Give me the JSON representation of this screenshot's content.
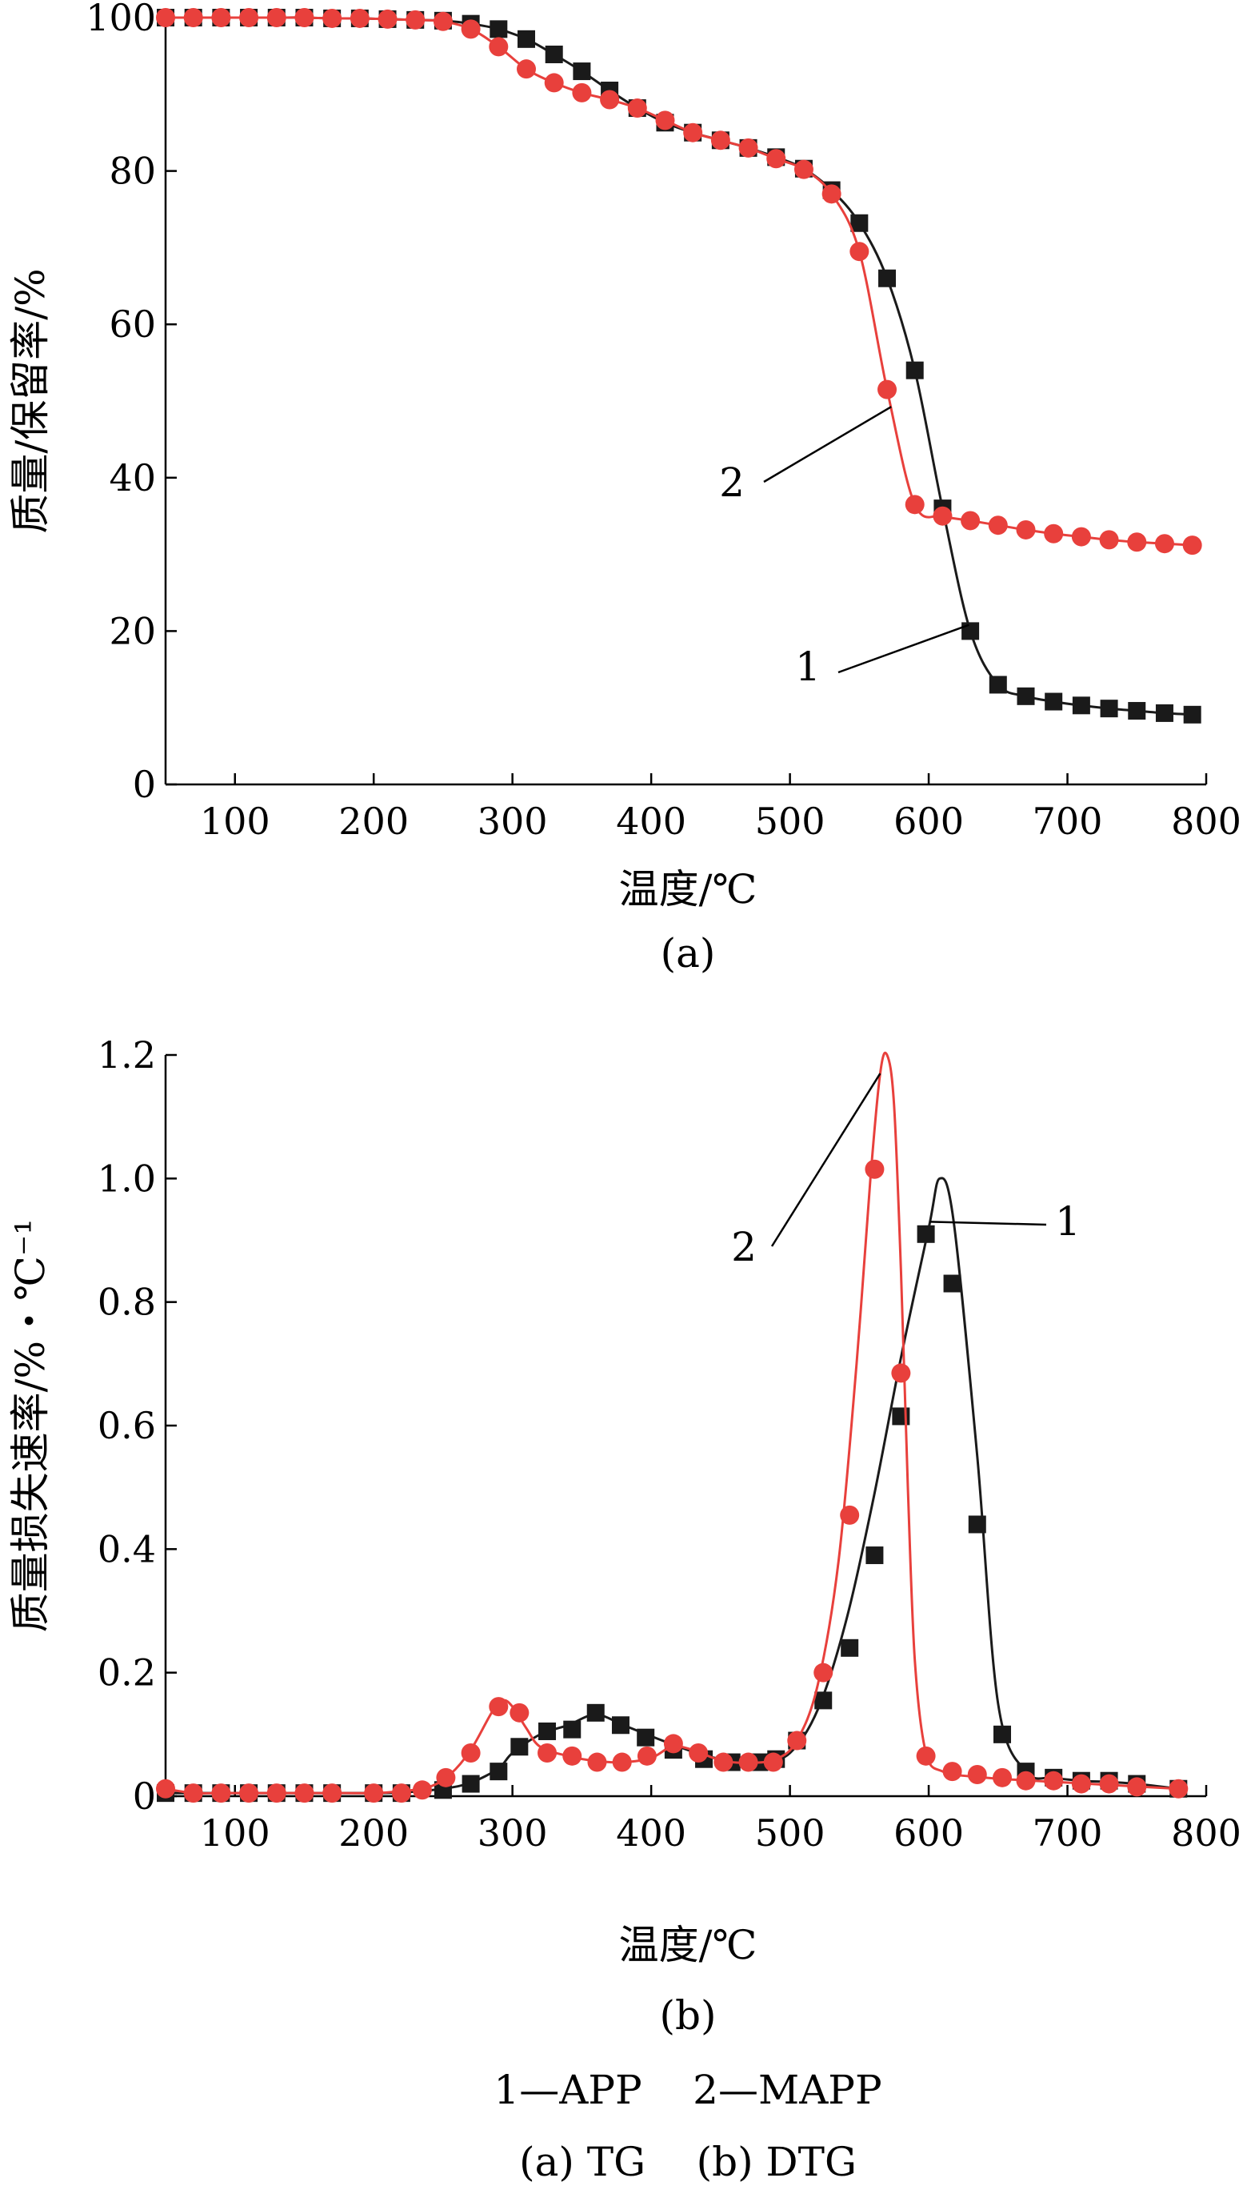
{
  "figure": {
    "legend_text": "1—APP    2—MAPP",
    "caption_text": "(a) TG    (b) DTG"
  },
  "series_labels": [
    "1",
    "2"
  ],
  "colors": {
    "series_1": "#1a1a1a",
    "series_2": "#e8403c",
    "axis": "#000000"
  },
  "chart_data": [
    {
      "type": "line",
      "panel_label": "(a)",
      "xlabel": "温度/℃",
      "ylabel": "质量/保留率/%",
      "xlim": [
        50,
        800
      ],
      "ylim": [
        0,
        100
      ],
      "xticks": [
        100,
        200,
        300,
        400,
        500,
        600,
        700,
        800
      ],
      "yticks": [
        0,
        20,
        40,
        60,
        80,
        100
      ],
      "grid": false,
      "series": [
        {
          "label": "1",
          "marker": "square",
          "color": "#1a1a1a",
          "x": [
            50,
            70,
            90,
            110,
            130,
            150,
            170,
            190,
            210,
            230,
            250,
            270,
            290,
            310,
            330,
            350,
            370,
            390,
            410,
            430,
            450,
            470,
            490,
            510,
            530,
            550,
            570,
            590,
            610,
            630,
            650,
            670,
            690,
            710,
            730,
            750,
            770,
            790
          ],
          "y": [
            100,
            100,
            100,
            100,
            100,
            100,
            99.9,
            99.9,
            99.8,
            99.7,
            99.6,
            99.2,
            98.5,
            97.2,
            95.2,
            93.0,
            90.5,
            88.2,
            86.3,
            85.0,
            84.0,
            83.0,
            81.8,
            80.3,
            77.5,
            73.2,
            66.0,
            54.0,
            36.0,
            20.0,
            13.0,
            11.5,
            10.8,
            10.3,
            9.9,
            9.6,
            9.3,
            9.1
          ]
        },
        {
          "label": "2",
          "marker": "circle",
          "color": "#e8403c",
          "x": [
            50,
            70,
            90,
            110,
            130,
            150,
            170,
            190,
            210,
            230,
            250,
            270,
            290,
            310,
            330,
            350,
            370,
            390,
            410,
            430,
            450,
            470,
            490,
            510,
            530,
            550,
            570,
            590,
            610,
            630,
            650,
            670,
            690,
            710,
            730,
            750,
            770,
            790
          ],
          "y": [
            100,
            100,
            100,
            100,
            100,
            100,
            99.9,
            99.9,
            99.8,
            99.7,
            99.5,
            98.5,
            96.2,
            93.3,
            91.5,
            90.2,
            89.3,
            88.2,
            86.6,
            85.0,
            84.0,
            83.0,
            81.6,
            80.2,
            77.0,
            69.5,
            51.5,
            36.5,
            35.0,
            34.4,
            33.8,
            33.2,
            32.7,
            32.3,
            31.9,
            31.6,
            31.4,
            31.2
          ]
        }
      ]
    },
    {
      "type": "line",
      "panel_label": "(b)",
      "xlabel": "温度/℃",
      "ylabel": "质量损失速率/%・℃⁻¹",
      "xlim": [
        50,
        800
      ],
      "ylim": [
        0,
        1.2
      ],
      "xticks": [
        100,
        200,
        300,
        400,
        500,
        600,
        700,
        800
      ],
      "yticks": [
        0,
        0.2,
        0.4,
        0.6,
        0.8,
        1.0,
        1.2
      ],
      "ytick_labels": [
        "0",
        "0.2",
        "0.4",
        "0.6",
        "0.8",
        "1.0",
        "1.2"
      ],
      "grid": false,
      "series": [
        {
          "label": "1",
          "marker": "square",
          "color": "#1a1a1a",
          "x": [
            50,
            70,
            90,
            110,
            130,
            150,
            170,
            200,
            220,
            250,
            270,
            290,
            300,
            320,
            340,
            360,
            380,
            400,
            420,
            440,
            460,
            480,
            500,
            520,
            540,
            560,
            580,
            600,
            608,
            618,
            635,
            650,
            670,
            690,
            710,
            730,
            750,
            780
          ],
          "x_markers": [
            50,
            70,
            90,
            110,
            130,
            150,
            170,
            200,
            220,
            250,
            270,
            290,
            305,
            325,
            343,
            360,
            378,
            396,
            416,
            438,
            458,
            478,
            490,
            505,
            524,
            543,
            561,
            580,
            598,
            617,
            635,
            653,
            670,
            690,
            710,
            730,
            750,
            780
          ],
          "y_markers": [
            0.005,
            0.005,
            0.005,
            0.005,
            0.005,
            0.005,
            0.005,
            0.005,
            0.005,
            0.01,
            0.02,
            0.04,
            0.08,
            0.105,
            0.108,
            0.135,
            0.115,
            0.095,
            0.075,
            0.06,
            0.055,
            0.055,
            0.06,
            0.09,
            0.155,
            0.24,
            0.39,
            0.615,
            0.91,
            0.83,
            0.44,
            0.1,
            0.04,
            0.03,
            0.025,
            0.025,
            0.02,
            0.012
          ],
          "y": [
            0.005,
            0.005,
            0.005,
            0.005,
            0.005,
            0.005,
            0.005,
            0.005,
            0.006,
            0.012,
            0.022,
            0.045,
            0.07,
            0.1,
            0.115,
            0.132,
            0.115,
            0.097,
            0.08,
            0.065,
            0.057,
            0.056,
            0.07,
            0.14,
            0.28,
            0.48,
            0.71,
            0.92,
            1.0,
            0.93,
            0.55,
            0.15,
            0.04,
            0.03,
            0.025,
            0.023,
            0.02,
            0.012
          ]
        },
        {
          "label": "2",
          "marker": "circle",
          "color": "#e8403c",
          "x_markers": [
            50,
            70,
            90,
            110,
            130,
            150,
            170,
            200,
            220,
            235,
            252,
            270,
            290,
            305,
            325,
            343,
            361,
            379,
            397,
            416,
            434,
            452,
            470,
            488,
            505,
            524,
            543,
            561,
            580,
            598,
            617,
            635,
            653,
            670,
            690,
            710,
            730,
            750,
            780
          ],
          "y_markers": [
            0.012,
            0.005,
            0.005,
            0.005,
            0.005,
            0.005,
            0.005,
            0.005,
            0.005,
            0.01,
            0.03,
            0.07,
            0.145,
            0.135,
            0.07,
            0.065,
            0.055,
            0.055,
            0.065,
            0.085,
            0.07,
            0.055,
            0.055,
            0.055,
            0.09,
            0.2,
            0.455,
            1.015,
            0.685,
            0.065,
            0.04,
            0.035,
            0.03,
            0.025,
            0.025,
            0.02,
            0.02,
            0.015,
            0.012
          ],
          "x": [
            50,
            70,
            90,
            110,
            130,
            150,
            170,
            200,
            220,
            240,
            255,
            270,
            285,
            293,
            300,
            310,
            320,
            340,
            360,
            380,
            400,
            415,
            430,
            450,
            470,
            490,
            505,
            520,
            535,
            548,
            558,
            565,
            570,
            575,
            580,
            585,
            590,
            598,
            610,
            630,
            660,
            700,
            740,
            780
          ],
          "y": [
            0.012,
            0.005,
            0.005,
            0.005,
            0.005,
            0.005,
            0.005,
            0.005,
            0.008,
            0.015,
            0.035,
            0.075,
            0.135,
            0.155,
            0.145,
            0.11,
            0.08,
            0.065,
            0.057,
            0.055,
            0.062,
            0.08,
            0.075,
            0.058,
            0.054,
            0.06,
            0.09,
            0.18,
            0.38,
            0.7,
            1.0,
            1.17,
            1.2,
            1.12,
            0.85,
            0.5,
            0.22,
            0.07,
            0.04,
            0.032,
            0.027,
            0.022,
            0.017,
            0.012
          ]
        }
      ]
    }
  ]
}
